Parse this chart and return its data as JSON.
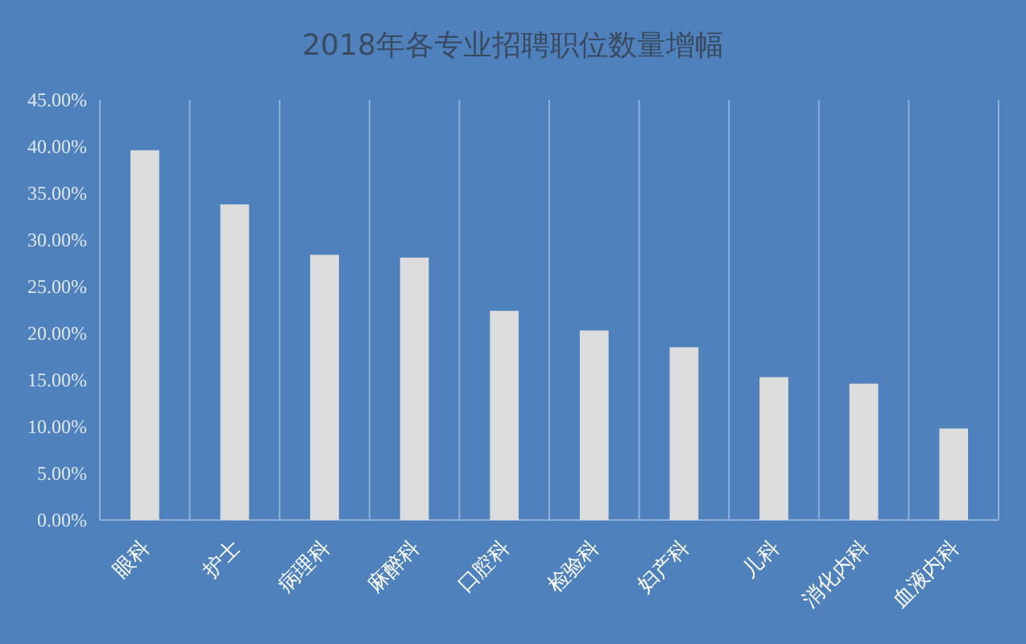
{
  "chart_data": {
    "type": "bar",
    "title": "2018年各专业招聘职位数量增幅",
    "categories": [
      "眼科",
      "护士",
      "病理科",
      "麻醉科",
      "口腔科",
      "检验科",
      "妇产科",
      "儿科",
      "消化内科",
      "血液内科"
    ],
    "values": [
      39.6,
      33.8,
      28.4,
      28.1,
      22.4,
      20.3,
      18.5,
      15.3,
      14.6,
      9.8
    ],
    "color": "#dcdcdc",
    "ylim": [
      0,
      45
    ],
    "yticks": [
      {
        "value": 0,
        "label": "0.00%"
      },
      {
        "value": 5,
        "label": "5.00%"
      },
      {
        "value": 10,
        "label": "10.00%"
      },
      {
        "value": 15,
        "label": "15.00%"
      },
      {
        "value": 20,
        "label": "20.00%"
      },
      {
        "value": 25,
        "label": "25.00%"
      },
      {
        "value": 30,
        "label": "30.00%"
      },
      {
        "value": 35,
        "label": "35.00%"
      },
      {
        "value": 40,
        "label": "40.00%"
      },
      {
        "value": 45,
        "label": "45.00%"
      }
    ],
    "grid": "x"
  }
}
